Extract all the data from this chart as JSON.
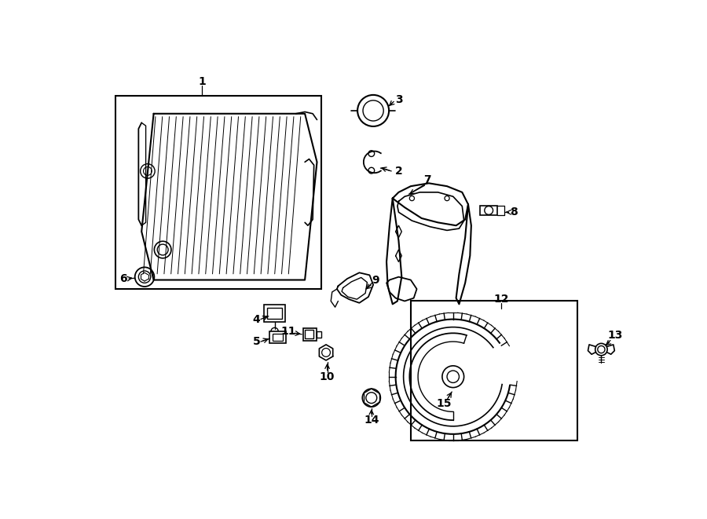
{
  "background_color": "#ffffff",
  "line_color": "#000000",
  "lw": 1.0,
  "lw2": 1.5,
  "label_fontsize": 10
}
